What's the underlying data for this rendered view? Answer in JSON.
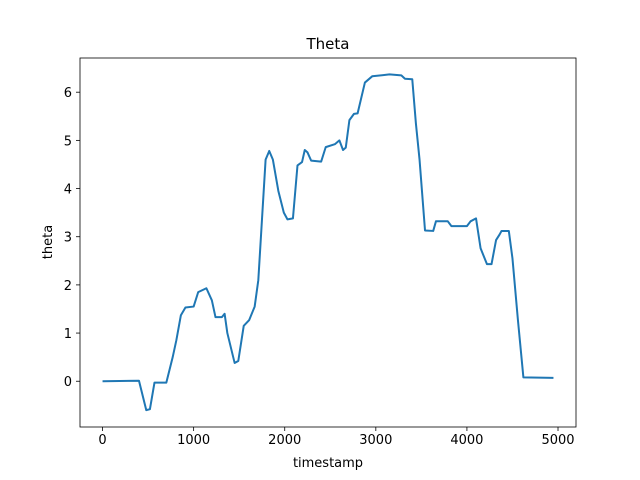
{
  "chart_data": {
    "type": "line",
    "title": "Theta",
    "x_label": "timestamp",
    "y_label": "theta",
    "x": [
      0,
      400,
      480,
      520,
      570,
      700,
      770,
      810,
      860,
      910,
      1000,
      1050,
      1140,
      1200,
      1240,
      1310,
      1340,
      1370,
      1450,
      1490,
      1550,
      1610,
      1670,
      1710,
      1750,
      1790,
      1830,
      1870,
      1930,
      1990,
      2030,
      2090,
      2140,
      2190,
      2220,
      2250,
      2290,
      2400,
      2450,
      2550,
      2600,
      2640,
      2670,
      2710,
      2760,
      2800,
      2880,
      2960,
      3150,
      3280,
      3320,
      3400,
      3440,
      3480,
      3540,
      3630,
      3660,
      3790,
      3830,
      4000,
      4040,
      4100,
      4150,
      4220,
      4270,
      4320,
      4360,
      4380,
      4460,
      4500,
      4560,
      4620,
      4950
    ],
    "series": [
      {
        "name": "theta",
        "color": "#1f77b4",
        "values": [
          0,
          0.01,
          -0.6,
          -0.58,
          -0.03,
          -0.03,
          0.5,
          0.85,
          1.37,
          1.53,
          1.55,
          1.85,
          1.93,
          1.68,
          1.33,
          1.33,
          1.4,
          1.0,
          0.38,
          0.42,
          1.15,
          1.27,
          1.55,
          2.1,
          3.35,
          4.6,
          4.78,
          4.6,
          3.95,
          3.5,
          3.36,
          3.38,
          4.48,
          4.55,
          4.8,
          4.75,
          4.58,
          4.56,
          4.86,
          4.92,
          5.0,
          4.8,
          4.85,
          5.42,
          5.55,
          5.56,
          6.2,
          6.33,
          6.37,
          6.35,
          6.28,
          6.27,
          5.35,
          4.6,
          3.13,
          3.12,
          3.32,
          3.32,
          3.22,
          3.22,
          3.32,
          3.38,
          2.76,
          2.43,
          2.43,
          2.93,
          3.05,
          3.12,
          3.12,
          2.55,
          1.27,
          0.08,
          0.07
        ]
      }
    ],
    "xlim": [
      -247.5,
      5197.5
    ],
    "xticks": [
      0,
      1000,
      2000,
      3000,
      4000,
      5000
    ],
    "ylim": [
      -0.95,
      6.71
    ],
    "yticks": [
      0,
      1,
      2,
      3,
      4,
      5,
      6
    ],
    "grid": false
  }
}
